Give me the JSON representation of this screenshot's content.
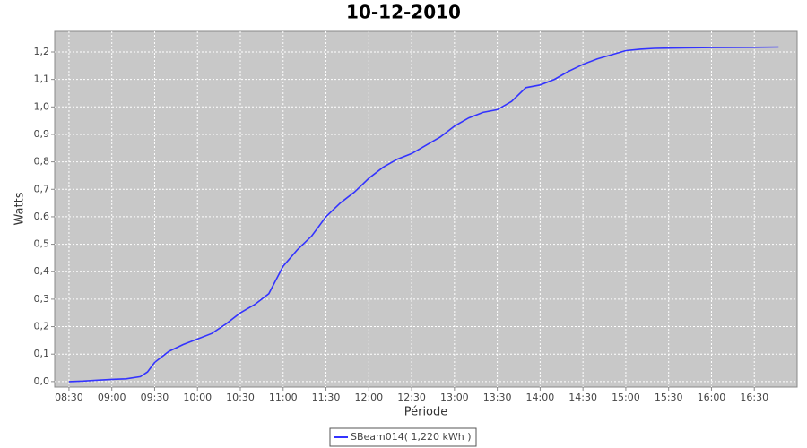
{
  "chart_data": {
    "type": "line",
    "title": "10-12-2010",
    "x_label": "Période",
    "y_label": "Watts",
    "x": [
      "08:30",
      "08:40",
      "08:50",
      "09:00",
      "09:10",
      "09:20",
      "09:25",
      "09:30",
      "09:40",
      "09:50",
      "10:00",
      "10:10",
      "10:20",
      "10:30",
      "10:40",
      "10:50",
      "10:55",
      "11:00",
      "11:10",
      "11:20",
      "11:30",
      "11:40",
      "11:50",
      "12:00",
      "12:10",
      "12:20",
      "12:30",
      "12:40",
      "12:50",
      "13:00",
      "13:10",
      "13:20",
      "13:30",
      "13:40",
      "13:50",
      "14:00",
      "14:10",
      "14:20",
      "14:30",
      "14:40",
      "14:50",
      "15:00",
      "15:10",
      "15:20",
      "15:30",
      "16:00",
      "16:30",
      "16:47"
    ],
    "series": [
      {
        "name": "SBeam014( 1,220 kWh )",
        "color": "#3333ff",
        "values": [
          0.0,
          0.002,
          0.005,
          0.008,
          0.01,
          0.018,
          0.035,
          0.07,
          0.11,
          0.135,
          0.155,
          0.175,
          0.21,
          0.25,
          0.28,
          0.32,
          0.37,
          0.42,
          0.48,
          0.53,
          0.6,
          0.65,
          0.69,
          0.74,
          0.78,
          0.81,
          0.83,
          0.86,
          0.89,
          0.93,
          0.96,
          0.98,
          0.99,
          1.02,
          1.07,
          1.08,
          1.1,
          1.13,
          1.155,
          1.175,
          1.19,
          1.205,
          1.21,
          1.213,
          1.214,
          1.216,
          1.217,
          1.218
        ]
      }
    ],
    "xlim": [
      "08:20",
      "17:00"
    ],
    "xticks": [
      "08:30",
      "09:00",
      "09:30",
      "10:00",
      "10:30",
      "11:00",
      "11:30",
      "12:00",
      "12:30",
      "13:00",
      "13:30",
      "14:00",
      "14:30",
      "15:00",
      "15:30",
      "16:00",
      "16:30"
    ],
    "ylim": [
      -0.02,
      1.275
    ],
    "yticks": [
      {
        "value": 0,
        "label": "0,0"
      },
      {
        "value": 0.1,
        "label": "0,1"
      },
      {
        "value": 0.2,
        "label": "0,2"
      },
      {
        "value": 0.3,
        "label": "0,3"
      },
      {
        "value": 0.4,
        "label": "0,4"
      },
      {
        "value": 0.5,
        "label": "0,5"
      },
      {
        "value": 0.6,
        "label": "0,6"
      },
      {
        "value": 0.7,
        "label": "0,7"
      },
      {
        "value": 0.8,
        "label": "0,8"
      },
      {
        "value": 0.9,
        "label": "0,9"
      },
      {
        "value": 1,
        "label": "1,0"
      },
      {
        "value": 1.1,
        "label": "1,1"
      },
      {
        "value": 1.2,
        "label": "1,2"
      }
    ],
    "grid": true,
    "legend": "bottom"
  }
}
